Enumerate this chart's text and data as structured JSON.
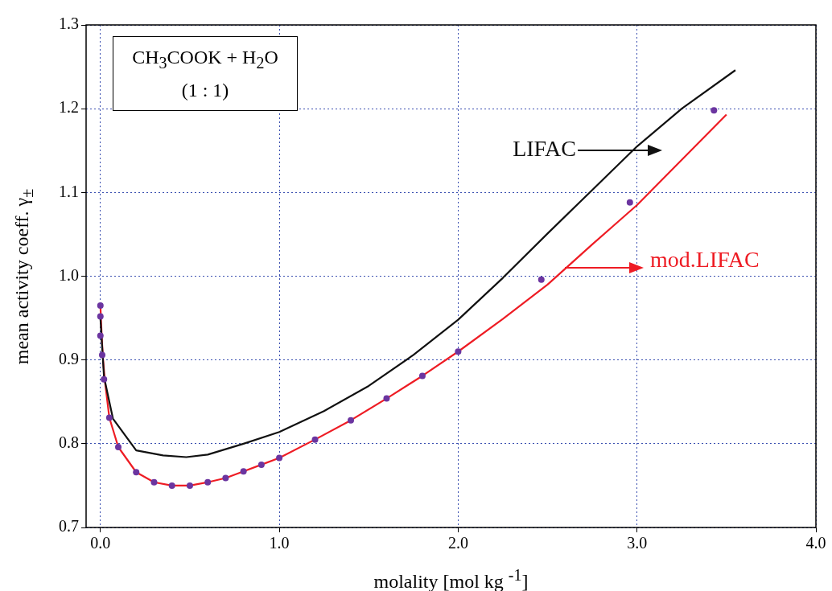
{
  "chart_data": {
    "type": "line",
    "xlabel": "molality [mol kg $^{-1}$]",
    "ylabel": "mean activity coeff. γ$_{±}$",
    "annotations": [
      "CH$_{3}$COOK + H$_{2}$O",
      "(1 : 1)"
    ],
    "xlim": [
      -0.08,
      4.0
    ],
    "ylim": [
      0.7,
      1.3
    ],
    "xticks": [
      {
        "value": 0,
        "label": "0.0"
      },
      {
        "value": 1,
        "label": "1.0"
      },
      {
        "value": 2,
        "label": "2.0"
      },
      {
        "value": 3,
        "label": "3.0"
      },
      {
        "value": 4,
        "label": "4.0"
      }
    ],
    "yticks": [
      {
        "value": 0.7,
        "label": "0.7"
      },
      {
        "value": 0.8,
        "label": "0.8"
      },
      {
        "value": 0.9,
        "label": "0.9"
      },
      {
        "value": 1.0,
        "label": "1.0"
      },
      {
        "value": 1.1,
        "label": "1.1"
      },
      {
        "value": 1.2,
        "label": "1.2"
      },
      {
        "value": 1.3,
        "label": "1.3"
      }
    ],
    "grid": true,
    "series": [
      {
        "name": "LIFAC",
        "color": "#111111",
        "marker": "none",
        "x": [
          0.0,
          0.02,
          0.07,
          0.2,
          0.35,
          0.48,
          0.6,
          0.8,
          1.0,
          1.25,
          1.5,
          1.75,
          2.0,
          2.25,
          2.5,
          2.75,
          3.0,
          3.25,
          3.55
        ],
        "values": [
          0.95,
          0.88,
          0.83,
          0.792,
          0.786,
          0.784,
          0.787,
          0.8,
          0.814,
          0.839,
          0.869,
          0.906,
          0.948,
          0.998,
          1.051,
          1.103,
          1.155,
          1.2,
          1.246
        ]
      },
      {
        "name": "mod.LIFAC",
        "color": "#ee1c24",
        "marker": "none",
        "x": [
          0.0,
          0.003,
          0.008,
          0.015,
          0.025,
          0.05,
          0.1,
          0.2,
          0.3,
          0.4,
          0.5,
          0.6,
          0.7,
          0.8,
          0.9,
          1.0,
          1.2,
          1.4,
          1.6,
          1.8,
          2.0,
          2.25,
          2.5,
          2.75,
          3.0,
          3.25,
          3.5
        ],
        "values": [
          0.965,
          0.95,
          0.925,
          0.9,
          0.875,
          0.831,
          0.796,
          0.766,
          0.754,
          0.75,
          0.75,
          0.754,
          0.759,
          0.767,
          0.775,
          0.783,
          0.805,
          0.828,
          0.854,
          0.881,
          0.91,
          0.949,
          0.99,
          1.038,
          1.085,
          1.139,
          1.193
        ]
      },
      {
        "type": "scatter",
        "color": "#6b35a0",
        "marker": "circle",
        "x": [
          0.0,
          0.0,
          0.0,
          0.01,
          0.02,
          0.05,
          0.1,
          0.2,
          0.3,
          0.4,
          0.5,
          0.6,
          0.7,
          0.8,
          0.9,
          1.0,
          1.2,
          1.4,
          1.6,
          1.8,
          2.0,
          2.465,
          2.96,
          3.43
        ],
        "values": [
          0.965,
          0.952,
          0.929,
          0.906,
          0.877,
          0.831,
          0.796,
          0.766,
          0.754,
          0.75,
          0.75,
          0.754,
          0.759,
          0.767,
          0.775,
          0.783,
          0.805,
          0.828,
          0.854,
          0.881,
          0.91,
          0.996,
          1.088,
          1.198
        ]
      }
    ]
  }
}
